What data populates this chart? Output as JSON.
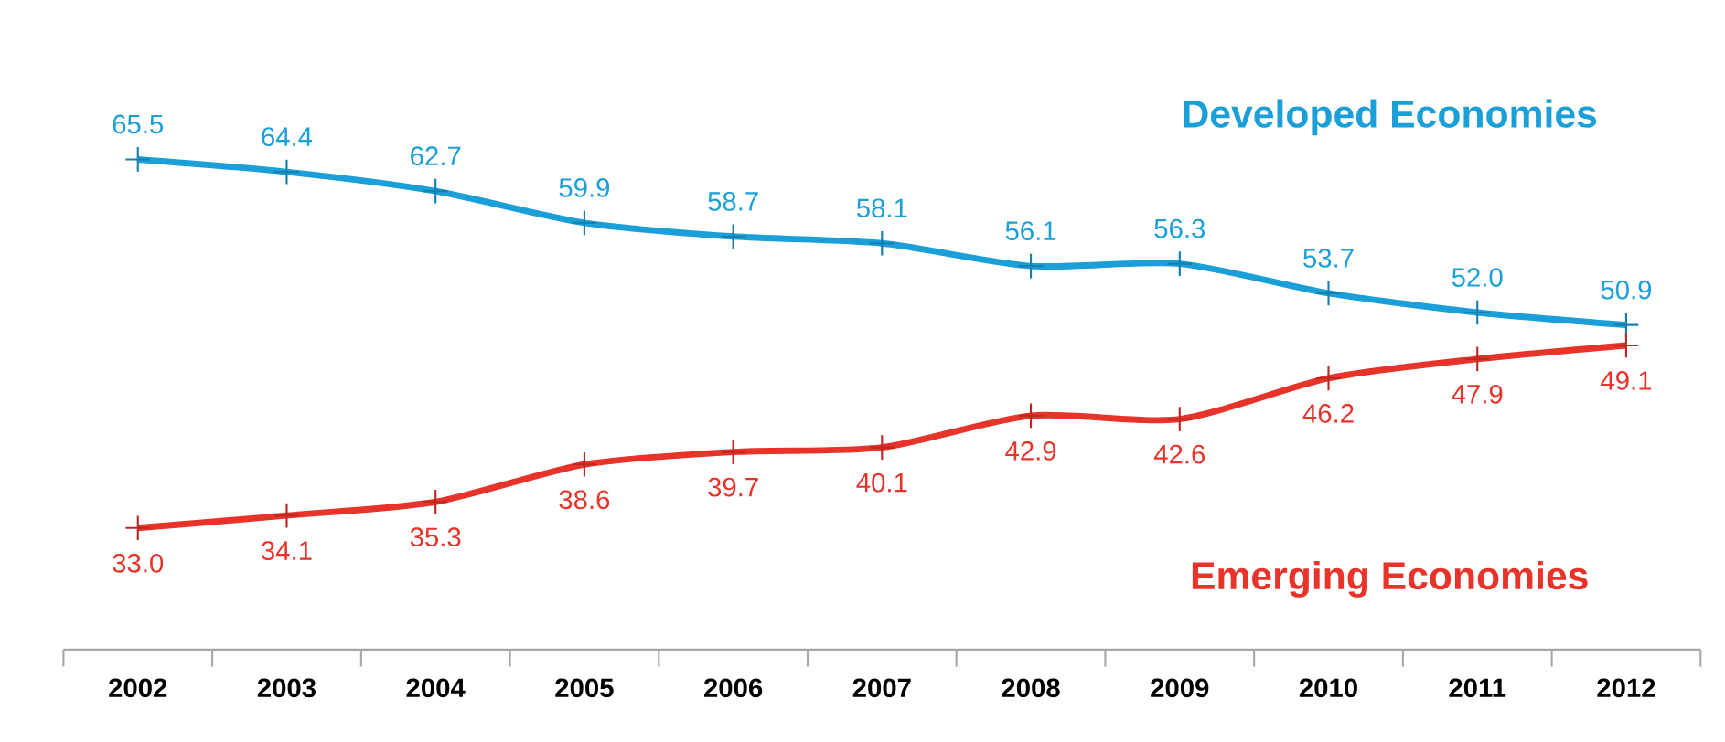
{
  "chart_data": {
    "type": "line",
    "categories": [
      "2002",
      "2003",
      "2004",
      "2005",
      "2006",
      "2007",
      "2008",
      "2009",
      "2010",
      "2011",
      "2012"
    ],
    "series": [
      {
        "name": "Developed Economies",
        "color": "#1a9fd8",
        "values": [
          65.5,
          64.4,
          62.7,
          59.9,
          58.7,
          58.1,
          56.1,
          56.3,
          53.7,
          52.0,
          50.9
        ],
        "value_labels": [
          "65.5",
          "64.4",
          "62.7",
          "59.9",
          "58.7",
          "58.1",
          "56.1",
          "56.3",
          "53.7",
          "52.0",
          "50.9"
        ]
      },
      {
        "name": "Emerging Economies",
        "color": "#e8332a",
        "values": [
          33.0,
          34.1,
          35.3,
          38.6,
          39.7,
          40.1,
          42.9,
          42.6,
          46.2,
          47.9,
          49.1
        ],
        "value_labels": [
          "33.0",
          "34.1",
          "35.3",
          "38.6",
          "39.7",
          "40.1",
          "42.9",
          "42.6",
          "46.2",
          "47.9",
          "49.1"
        ]
      }
    ],
    "marker": "cross",
    "line_style": "solid",
    "tick_labels": "x"
  }
}
